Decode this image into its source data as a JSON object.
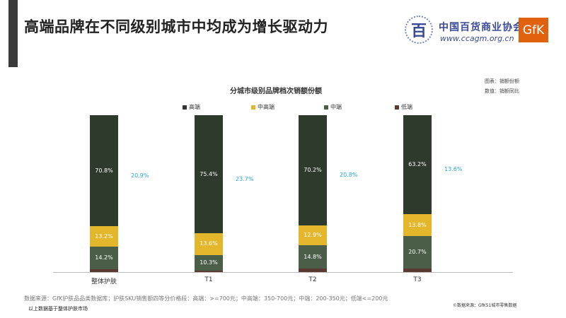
{
  "header": {
    "title": "高端品牌在不同级别城市中均成为增长驱动力",
    "logo_ccagm_name": "中国百货商业协会",
    "logo_ccagm_url": "www.ccagm.org.cn",
    "logo_ccagm_glyph": "百",
    "logo_gfk": "GfK"
  },
  "notes": {
    "chart_label": "图表：销额份额",
    "data_label": "数值：销额同比"
  },
  "footer": {
    "source": "数据来源：GfK护肤品品类数据库；护肤SKU销售额四等分价格段：高端：>=700元；中高端：350-700元；中端：200-350元；低端<=200元",
    "scope": "以上数据基于整体护肤市场",
    "source_right": "©数据来源：GfK51城市零售数据"
  },
  "chart_data": {
    "type": "bar",
    "stacked": true,
    "title": "分城市级别品牌档次销额份额",
    "categories": [
      "整体护肤",
      "T1",
      "T2",
      "T3"
    ],
    "ylim": [
      0,
      100
    ],
    "grid": false,
    "legend_position": "top",
    "series": [
      {
        "name": "高端",
        "color": "#2e3a2b",
        "values": [
          70.8,
          75.4,
          70.2,
          63.2
        ],
        "labels": [
          "70.8%",
          "75.4%",
          "70.2%",
          "63.2%"
        ]
      },
      {
        "name": "中高端",
        "color": "#e3b62b",
        "values": [
          13.2,
          13.6,
          12.9,
          13.8
        ],
        "labels": [
          "13.2%",
          "13.6%",
          "12.9%",
          "13.8%"
        ]
      },
      {
        "name": "中端",
        "color": "#4b5f48",
        "values": [
          14.2,
          10.3,
          14.8,
          20.7
        ],
        "labels": [
          "14.2%",
          "10.3%",
          "14.8%",
          "20.7%"
        ]
      },
      {
        "name": "低端",
        "color": "#5b3a33",
        "values": [
          1.8,
          0.7,
          2.1,
          2.3
        ],
        "labels": []
      }
    ],
    "growth": {
      "color": "#29a8d8",
      "values": [
        20.9,
        23.7,
        20.8,
        13.6
      ],
      "labels": [
        "20.9%",
        "23.7%",
        "20.8%",
        "13.6%"
      ]
    }
  }
}
